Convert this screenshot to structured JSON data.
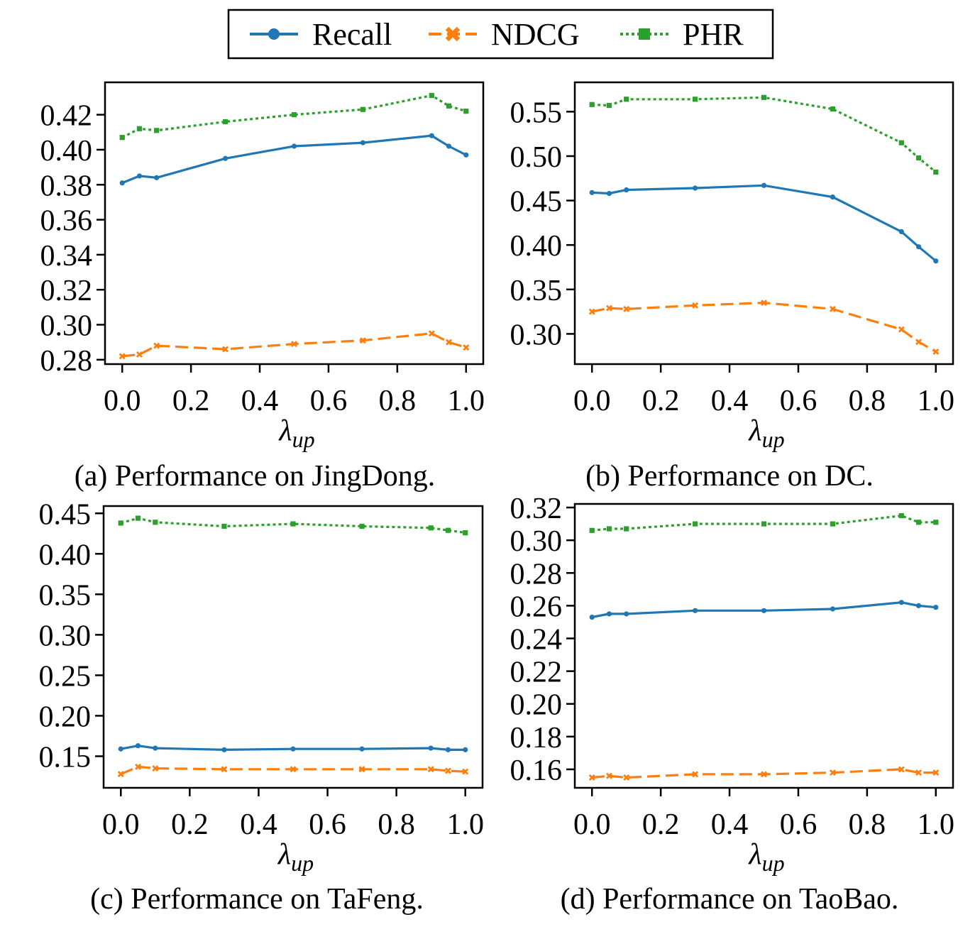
{
  "legend": {
    "placement": "top-center",
    "entries": [
      {
        "label": "Recall",
        "color": "#1f77b4",
        "marker": "circle",
        "dash": "solid"
      },
      {
        "label": "NDCG",
        "color": "#ff7f0e",
        "marker": "x",
        "dash": "dashed"
      },
      {
        "label": "PHR",
        "color": "#2ca02c",
        "marker": "square",
        "dash": "dotted"
      }
    ]
  },
  "chart_data": [
    {
      "type": "line",
      "caption": "(a) Performance on JingDong.",
      "xlabel_base": "λ",
      "xlabel_sub": "up",
      "ylabel": "",
      "x": [
        0.0,
        0.05,
        0.1,
        0.3,
        0.5,
        0.7,
        0.9,
        0.95,
        1.0
      ],
      "xlim": [
        -0.05,
        1.05
      ],
      "ylim": [
        0.2775,
        0.4385
      ],
      "xticks": [
        0.0,
        0.2,
        0.4,
        0.6,
        0.8,
        1.0
      ],
      "xtick_labels": [
        "0.0",
        "0.2",
        "0.4",
        "0.6",
        "0.8",
        "1.0"
      ],
      "yticks": [
        0.28,
        0.3,
        0.32,
        0.34,
        0.36,
        0.38,
        0.4,
        0.42
      ],
      "ytick_labels": [
        "0.28",
        "0.30",
        "0.32",
        "0.34",
        "0.36",
        "0.38",
        "0.40",
        "0.42"
      ],
      "grid": false,
      "series": [
        {
          "name": "Recall",
          "values": [
            0.381,
            0.385,
            0.384,
            0.395,
            0.402,
            0.404,
            0.408,
            0.402,
            0.397
          ]
        },
        {
          "name": "NDCG",
          "values": [
            0.282,
            0.283,
            0.288,
            0.286,
            0.289,
            0.291,
            0.295,
            0.29,
            0.287
          ]
        },
        {
          "name": "PHR",
          "values": [
            0.407,
            0.412,
            0.411,
            0.416,
            0.42,
            0.423,
            0.431,
            0.425,
            0.422
          ]
        }
      ]
    },
    {
      "type": "line",
      "caption": "(b) Performance on DC.",
      "xlabel_base": "λ",
      "xlabel_sub": "up",
      "ylabel": "",
      "x": [
        0.0,
        0.05,
        0.1,
        0.3,
        0.5,
        0.7,
        0.9,
        0.95,
        1.0
      ],
      "xlim": [
        -0.05,
        1.05
      ],
      "ylim": [
        0.266,
        0.583
      ],
      "xticks": [
        0.0,
        0.2,
        0.4,
        0.6,
        0.8,
        1.0
      ],
      "xtick_labels": [
        "0.0",
        "0.2",
        "0.4",
        "0.6",
        "0.8",
        "1.0"
      ],
      "yticks": [
        0.3,
        0.35,
        0.4,
        0.45,
        0.5,
        0.55
      ],
      "ytick_labels": [
        "0.30",
        "0.35",
        "0.40",
        "0.45",
        "0.50",
        "0.55"
      ],
      "grid": false,
      "series": [
        {
          "name": "Recall",
          "values": [
            0.459,
            0.458,
            0.462,
            0.464,
            0.467,
            0.454,
            0.415,
            0.398,
            0.382
          ]
        },
        {
          "name": "NDCG",
          "values": [
            0.325,
            0.329,
            0.328,
            0.332,
            0.335,
            0.328,
            0.305,
            0.291,
            0.28
          ]
        },
        {
          "name": "PHR",
          "values": [
            0.558,
            0.557,
            0.564,
            0.564,
            0.566,
            0.553,
            0.515,
            0.498,
            0.482
          ]
        }
      ]
    },
    {
      "type": "line",
      "caption": "(c) Performance on TaFeng.",
      "xlabel_base": "λ",
      "xlabel_sub": "up",
      "ylabel": "",
      "x": [
        0.0,
        0.05,
        0.1,
        0.3,
        0.5,
        0.7,
        0.9,
        0.95,
        1.0
      ],
      "xlim": [
        -0.05,
        1.05
      ],
      "ylim": [
        0.111,
        0.459
      ],
      "xticks": [
        0.0,
        0.2,
        0.4,
        0.6,
        0.8,
        1.0
      ],
      "xtick_labels": [
        "0.0",
        "0.2",
        "0.4",
        "0.6",
        "0.8",
        "1.0"
      ],
      "yticks": [
        0.15,
        0.2,
        0.25,
        0.3,
        0.35,
        0.4,
        0.45
      ],
      "ytick_labels": [
        "0.15",
        "0.20",
        "0.25",
        "0.30",
        "0.35",
        "0.40",
        "0.45"
      ],
      "grid": false,
      "series": [
        {
          "name": "Recall",
          "values": [
            0.159,
            0.163,
            0.16,
            0.158,
            0.159,
            0.159,
            0.16,
            0.158,
            0.158
          ]
        },
        {
          "name": "NDCG",
          "values": [
            0.128,
            0.137,
            0.135,
            0.134,
            0.134,
            0.134,
            0.134,
            0.132,
            0.131
          ]
        },
        {
          "name": "PHR",
          "values": [
            0.438,
            0.444,
            0.439,
            0.434,
            0.437,
            0.434,
            0.432,
            0.429,
            0.426
          ]
        }
      ]
    },
    {
      "type": "line",
      "caption": "(d) Performance on TaoBao.",
      "xlabel_base": "λ",
      "xlabel_sub": "up",
      "ylabel": "",
      "x": [
        0.0,
        0.05,
        0.1,
        0.3,
        0.5,
        0.7,
        0.9,
        0.95,
        1.0
      ],
      "xlim": [
        -0.05,
        1.05
      ],
      "ylim": [
        0.1487,
        0.3222
      ],
      "xticks": [
        0.0,
        0.2,
        0.4,
        0.6,
        0.8,
        1.0
      ],
      "xtick_labels": [
        "0.0",
        "0.2",
        "0.4",
        "0.6",
        "0.8",
        "1.0"
      ],
      "yticks": [
        0.16,
        0.18,
        0.2,
        0.22,
        0.24,
        0.26,
        0.28,
        0.3,
        0.32
      ],
      "ytick_labels": [
        "0.16",
        "0.18",
        "0.20",
        "0.22",
        "0.24",
        "0.26",
        "0.28",
        "0.30",
        "0.32"
      ],
      "grid": false,
      "series": [
        {
          "name": "Recall",
          "values": [
            0.253,
            0.255,
            0.255,
            0.257,
            0.257,
            0.258,
            0.262,
            0.26,
            0.259
          ]
        },
        {
          "name": "NDCG",
          "values": [
            0.155,
            0.156,
            0.155,
            0.157,
            0.157,
            0.158,
            0.16,
            0.158,
            0.158
          ]
        },
        {
          "name": "PHR",
          "values": [
            0.306,
            0.307,
            0.307,
            0.31,
            0.31,
            0.31,
            0.315,
            0.311,
            0.311
          ]
        }
      ]
    }
  ]
}
